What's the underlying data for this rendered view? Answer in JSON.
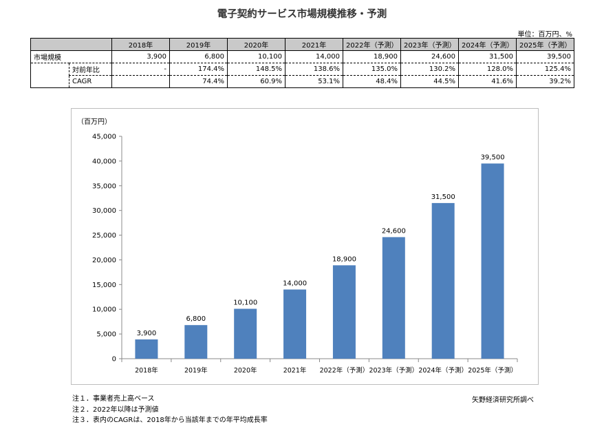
{
  "title": "電子契約サービス市場規模推移・予測",
  "unit_note": "単位：百万円、%",
  "table": {
    "columns": [
      "2018年",
      "2019年",
      "2020年",
      "2021年",
      "2022年（予測）",
      "2023年（予測）",
      "2024年（予測）",
      "2025年（予測）"
    ],
    "rows": [
      {
        "label": "市場規模",
        "values": [
          "3,900",
          "6,800",
          "10,100",
          "14,000",
          "18,900",
          "24,600",
          "31,500",
          "39,500"
        ]
      },
      {
        "label": "対前年比",
        "values": [
          "-",
          "174.4%",
          "148.5%",
          "138.6%",
          "135.0%",
          "130.2%",
          "128.0%",
          "125.4%"
        ]
      },
      {
        "label": "CAGR",
        "values": [
          "",
          "74.4%",
          "60.9%",
          "53.1%",
          "48.4%",
          "44.5%",
          "41.6%",
          "39.2%"
        ]
      }
    ]
  },
  "chart_data": {
    "type": "bar",
    "ylabel": "（百万円）",
    "categories": [
      "2018年",
      "2019年",
      "2020年",
      "2021年",
      "2022年（予測）",
      "2023年（予測）",
      "2024年（予測）",
      "2025年（予測）"
    ],
    "values": [
      3900,
      6800,
      10100,
      14000,
      18900,
      24600,
      31500,
      39500
    ],
    "data_labels": [
      "3,900",
      "6,800",
      "10,100",
      "14,000",
      "18,900",
      "24,600",
      "31,500",
      "39,500"
    ],
    "ylim": [
      0,
      45000
    ],
    "yticks": [
      0,
      5000,
      10000,
      15000,
      20000,
      25000,
      30000,
      35000,
      40000,
      45000
    ],
    "ytick_labels": [
      "0",
      "5,000",
      "10,000",
      "15,000",
      "20,000",
      "25,000",
      "30,000",
      "35,000",
      "40,000",
      "45,000"
    ],
    "bar_color": "#4f81bd",
    "grid": false,
    "legend": "none"
  },
  "notes": [
    "注１．事業者売上高ベース",
    "注２．2022年以降は予測値",
    "注３．表内のCAGRは、2018年から当該年までの年平均成長率"
  ],
  "source": "矢野経済研究所調べ"
}
